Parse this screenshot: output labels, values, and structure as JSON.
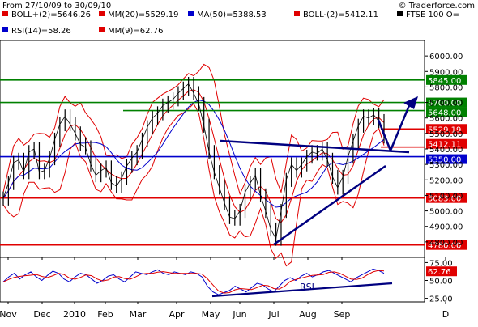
{
  "header": {
    "date_range": "From 27/10/09 to 30/09/10",
    "source": "© Traderforce.com"
  },
  "legend": [
    {
      "label": "BOLL+(2)=5646.26",
      "color": "#e00000"
    },
    {
      "label": "MM(20)=5529.19",
      "color": "#e00000"
    },
    {
      "label": "MA(50)=5388.53",
      "color": "#0000cc"
    },
    {
      "label": "BOLL-(2)=5412.11",
      "color": "#e00000"
    },
    {
      "label": "FTSE 100 O=",
      "color": "#000000"
    },
    {
      "label": "RSI(14)=58.26",
      "color": "#0000cc"
    },
    {
      "label": "MM(9)=62.76",
      "color": "#e00000"
    }
  ],
  "chart_data": [
    {
      "type": "line",
      "title": "FTSE 100",
      "ylim": [
        4700,
        6100
      ],
      "y_ticks": [
        "6000.00",
        "5900.00",
        "5800.00",
        "5700.00",
        "5600.00",
        "5500.00",
        "5400.00",
        "5300.00",
        "5200.00",
        "5100.00",
        "5000.00",
        "4900.00",
        "4800.00"
      ],
      "x_ticks": [
        "Nov",
        "Dec",
        "2010",
        "Feb",
        "Mar",
        "Apr",
        "May",
        "Jun",
        "Jul",
        "Aug",
        "Sep",
        "D"
      ],
      "close_series": [
        5080,
        5180,
        5310,
        5330,
        5250,
        5380,
        5400,
        5250,
        5260,
        5340,
        5460,
        5560,
        5610,
        5560,
        5500,
        5430,
        5410,
        5300,
        5230,
        5260,
        5280,
        5180,
        5160,
        5210,
        5290,
        5340,
        5380,
        5460,
        5540,
        5600,
        5630,
        5680,
        5700,
        5720,
        5760,
        5790,
        5820,
        5760,
        5690,
        5550,
        5380,
        5250,
        5150,
        5050,
        4960,
        4950,
        5000,
        5120,
        5180,
        5230,
        5100,
        5000,
        4880,
        4820,
        5000,
        5200,
        5300,
        5260,
        5300,
        5350,
        5380,
        5370,
        5400,
        5330,
        5220,
        5150,
        5220,
        5350,
        5450,
        5550,
        5610,
        5600,
        5620,
        5580,
        5480
      ],
      "horizontal_levels": [
        {
          "label": "5845.00",
          "value": 5845,
          "color": "#008000"
        },
        {
          "label": "5700.00",
          "value": 5700,
          "color": "#008000"
        },
        {
          "label": "5648.00",
          "value": 5648,
          "color": "#008000"
        },
        {
          "label": "5529.19",
          "value": 5529.19,
          "color": "#e00000"
        },
        {
          "label": "5412.11",
          "value": 5412.11,
          "color": "#e00000"
        },
        {
          "label": "5350.00",
          "value": 5350,
          "color": "#0000cc"
        },
        {
          "label": "5083.00",
          "value": 5083,
          "color": "#e00000"
        },
        {
          "label": "4780.00",
          "value": 4780,
          "color": "#e00000"
        }
      ]
    },
    {
      "type": "line",
      "title": "RSI",
      "ylim": [
        20,
        80
      ],
      "y_ticks": [
        "75.00",
        "50.00",
        "25.00"
      ],
      "highlight_label": "62.76",
      "rsi_series": [
        48,
        55,
        60,
        52,
        58,
        62,
        55,
        50,
        57,
        63,
        60,
        52,
        48,
        55,
        60,
        58,
        52,
        46,
        50,
        56,
        58,
        52,
        48,
        55,
        62,
        60,
        58,
        62,
        65,
        60,
        58,
        62,
        60,
        58,
        62,
        60,
        55,
        42,
        34,
        30,
        33,
        36,
        42,
        38,
        34,
        40,
        46,
        44,
        38,
        34,
        42,
        50,
        54,
        50,
        56,
        60,
        55,
        58,
        62,
        64,
        60,
        56,
        52,
        48,
        54,
        58,
        62,
        66,
        64,
        60
      ]
    }
  ],
  "annotations": {
    "rsi_text": "RSI"
  }
}
